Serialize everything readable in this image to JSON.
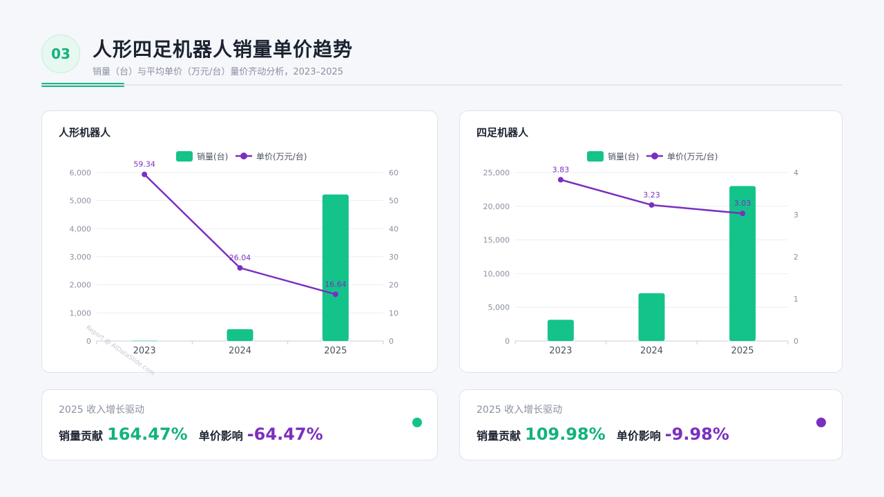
{
  "header": {
    "badge": "03",
    "title": "人形四足机器人销量单价趋势",
    "subtitle": "销量（台）与平均单价（万元/台）量价齐动分析，2023–2025"
  },
  "colors": {
    "bar": "#14c38a",
    "line": "#7b2fbf",
    "grid": "#eceef3",
    "axis": "#c9ccd8",
    "tick": "#8a90a0"
  },
  "watermark": "Report @ AIDataSlide.com",
  "chart_data": [
    {
      "type": "bar",
      "title": "人形机器人",
      "categories": [
        "2023",
        "2024",
        "2025"
      ],
      "series": [
        {
          "name": "销量(台)",
          "type": "bar",
          "axis": "left",
          "values": [
            10,
            420,
            5220
          ]
        },
        {
          "name": "单价(万元/台)",
          "type": "line",
          "axis": "right",
          "values": [
            59.34,
            26.04,
            16.64
          ],
          "labels": [
            "59.34",
            "26.04",
            "16.64"
          ]
        }
      ],
      "y_left": {
        "min": 0,
        "max": 6000,
        "ticks": [
          "0",
          "1,000",
          "2,000",
          "3,000",
          "4,000",
          "5,000",
          "6,000"
        ]
      },
      "y_right": {
        "min": 0,
        "max": 60,
        "ticks": [
          "0",
          "10",
          "20",
          "30",
          "40",
          "50",
          "60"
        ]
      },
      "legend": "top-center",
      "grid": true
    },
    {
      "type": "bar",
      "title": "四足机器人",
      "categories": [
        "2023",
        "2024",
        "2025"
      ],
      "series": [
        {
          "name": "销量(台)",
          "type": "bar",
          "axis": "left",
          "values": [
            3150,
            7100,
            23000
          ]
        },
        {
          "name": "单价(万元/台)",
          "type": "line",
          "axis": "right",
          "values": [
            3.83,
            3.23,
            3.03
          ],
          "labels": [
            "3.83",
            "3.23",
            "3.03"
          ]
        }
      ],
      "y_left": {
        "min": 0,
        "max": 25000,
        "ticks": [
          "0",
          "5,000",
          "10,000",
          "15,000",
          "20,000",
          "25,000"
        ]
      },
      "y_right": {
        "min": 0,
        "max": 4,
        "ticks": [
          "0",
          "1",
          "2",
          "3",
          "4"
        ]
      },
      "legend": "top-center",
      "grid": true
    }
  ],
  "metrics": [
    {
      "label": "2025 收入增长驱动",
      "volume_key": "销量贡献",
      "volume_value": "164.47%",
      "price_key": "单价影响",
      "price_value": "-64.47%",
      "dot_color": "#14c38a"
    },
    {
      "label": "2025 收入增长驱动",
      "volume_key": "销量贡献",
      "volume_value": "109.98%",
      "price_key": "单价影响",
      "price_value": "-9.98%",
      "dot_color": "#7b2fbf"
    }
  ]
}
